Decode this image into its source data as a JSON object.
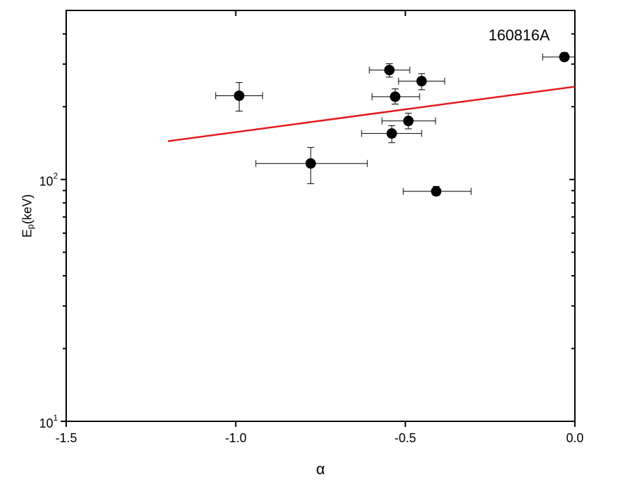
{
  "chart_data": {
    "type": "scatter",
    "annotation": "160816A",
    "xlabel": "α",
    "ylabel": {
      "main": "E",
      "sub": "p",
      "unit": "(keV)"
    },
    "xlim": [
      -1.5,
      0.0
    ],
    "xticks": [
      -1.5,
      {
        "value": -1.0,
        "label": "-1.0"
      },
      -0.5,
      {
        "value": 0.0,
        "label": "0.0"
      }
    ],
    "ylim": [
      10,
      500
    ],
    "yscale": "log",
    "yticks": [
      {
        "value": 10,
        "label": "10",
        "exponent": "1"
      },
      {
        "value": 100,
        "label": "10",
        "exponent": "2"
      }
    ],
    "yminorticks": [
      20,
      30,
      40,
      50,
      60,
      70,
      80,
      90,
      200,
      300,
      400
    ],
    "series": [
      {
        "color": "#000000",
        "x": [
          -0.99,
          -0.779,
          -0.547,
          -0.53,
          -0.452,
          -0.491,
          -0.54,
          -0.409,
          -0.031
        ],
        "values": [
          222,
          116.5,
          283.5,
          220,
          255,
          174.6,
          155,
          89.3,
          321
        ],
        "xmin": [
          -1.059,
          -0.941,
          -0.606,
          -0.598,
          -0.52,
          -0.569,
          -0.629,
          -0.506,
          -0.095
        ],
        "xmax": [
          -0.921,
          -0.612,
          -0.487,
          -0.458,
          -0.384,
          -0.411,
          -0.452,
          -0.306,
          0.0
        ],
        "ymin": [
          191.7,
          96.1,
          265,
          205,
          235,
          162,
          142,
          85.9,
          309
        ],
        "ymax": [
          251.6,
          135.7,
          301,
          237,
          274,
          188,
          167,
          93.6,
          334.5
        ]
      },
      {
        "type": "line",
        "color": "#e41a1c",
        "x": [
          -1.2,
          0.0
        ],
        "values": [
          144,
          242
        ]
      }
    ]
  }
}
